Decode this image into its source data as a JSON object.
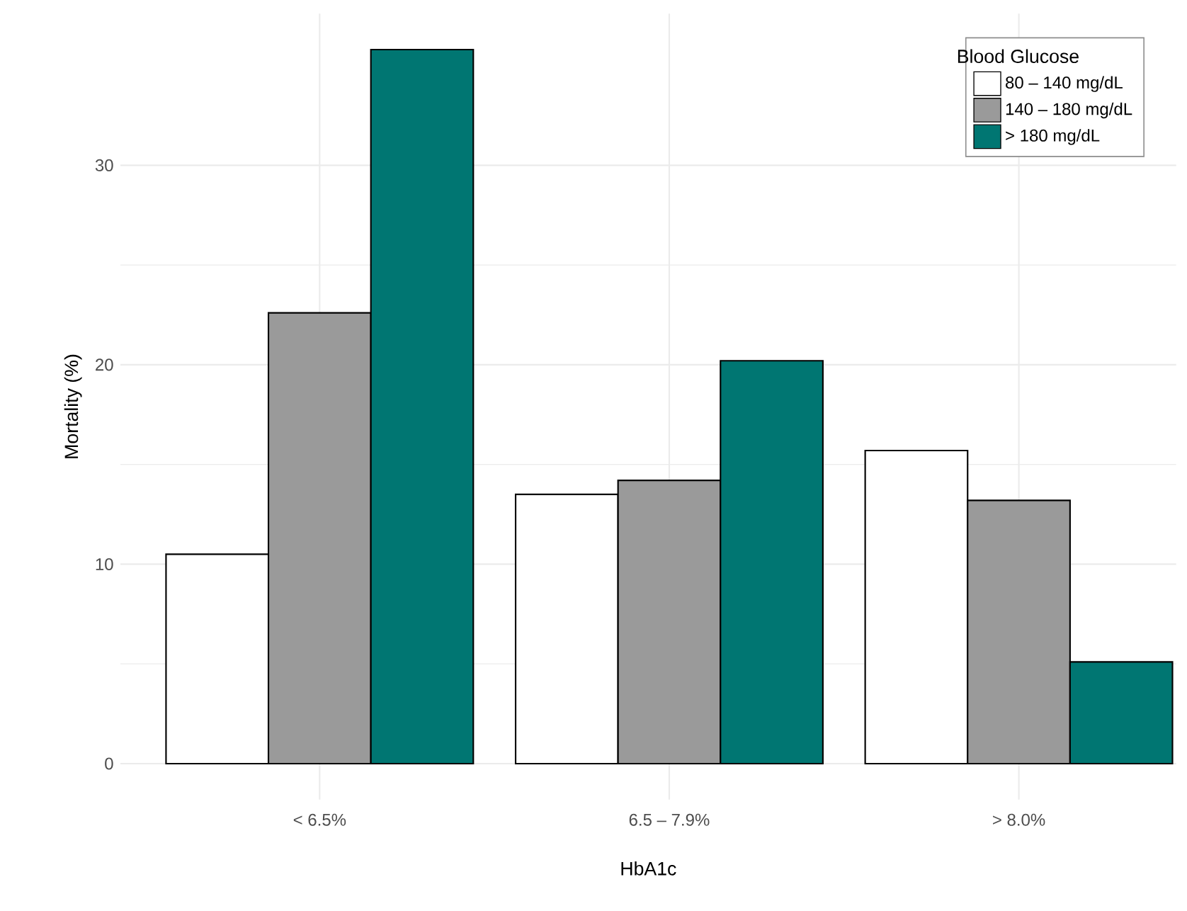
{
  "chart_data": {
    "type": "bar",
    "xlabel": "HbA1c",
    "ylabel": "Mortality (%)",
    "legend_title": "Blood Glucose",
    "legend": "top right",
    "grid": true,
    "categories": [
      "< 6.5%",
      "6.5 – 7.9%",
      "> 8.0%"
    ],
    "ylim": [
      -1.8,
      37.6
    ],
    "yticks": [
      0,
      10,
      20,
      30
    ],
    "series": [
      {
        "name": "80 – 140 mg/dL",
        "color": "#ffffff",
        "values": [
          10.5,
          13.5,
          15.7
        ]
      },
      {
        "name": "140 – 180 mg/dL",
        "color": "#9a9a9a",
        "values": [
          22.6,
          14.2,
          13.2
        ]
      },
      {
        "name": "> 180 mg/dL",
        "color": "#007672",
        "values": [
          35.8,
          20.2,
          5.1
        ]
      }
    ]
  }
}
